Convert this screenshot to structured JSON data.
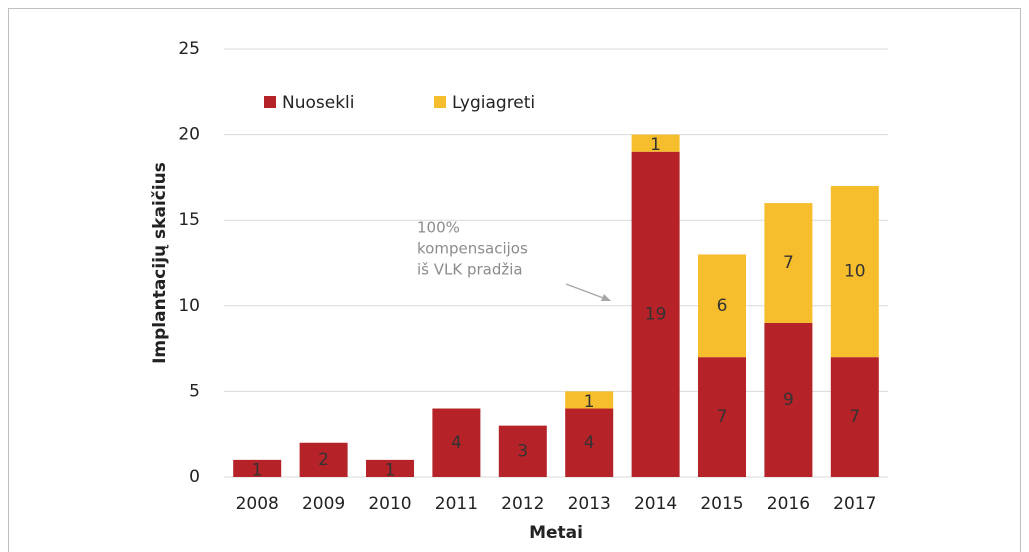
{
  "chart_data": {
    "type": "stacked_bar",
    "x_label": "Metai",
    "y_label": "Implantacijų skaičius",
    "categories": [
      "2008",
      "2009",
      "2010",
      "2011",
      "2012",
      "2013",
      "2014",
      "2015",
      "2016",
      "2017"
    ],
    "series": [
      {
        "name": "Nuosekli",
        "color": "#b52227",
        "values": [
          1,
          2,
          1,
          4,
          3,
          4,
          19,
          7,
          9,
          7
        ]
      },
      {
        "name": "Lygiagreti",
        "color": "#f6bd2c",
        "values": [
          0,
          0,
          0,
          0,
          0,
          1,
          1,
          6,
          7,
          10
        ]
      }
    ],
    "ylim": [
      0,
      25
    ],
    "yticks": [
      0,
      5,
      10,
      15,
      20,
      25
    ],
    "grid": true,
    "legend": "top-left",
    "annotation": [
      "100%",
      "kompensacijos",
      "iš VLK pradžia"
    ]
  }
}
